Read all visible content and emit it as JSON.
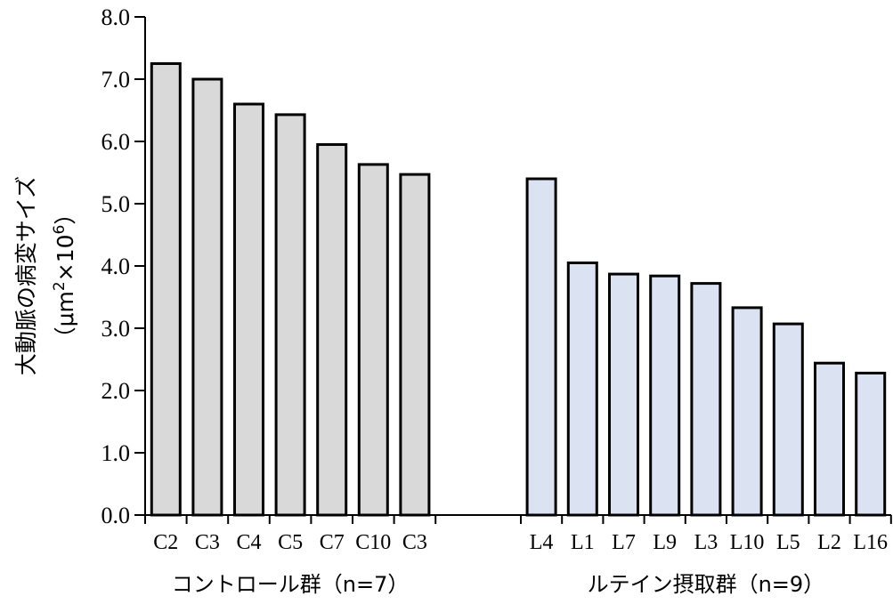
{
  "chart_data": {
    "type": "bar",
    "ylabel_line1": "大動脈の病変サイズ",
    "ylabel_line2_pre": "（μm",
    "ylabel_line2_sup1": "2",
    "ylabel_line2_mid": "×10",
    "ylabel_line2_sup2": "6",
    "ylabel_line2_post": "）",
    "ylim": [
      0,
      8
    ],
    "yticks": [
      "0.0",
      "1.0",
      "2.0",
      "3.0",
      "4.0",
      "5.0",
      "6.0",
      "7.0",
      "8.0"
    ],
    "grid": false,
    "groups": [
      {
        "name": "コントロール群（n=7）",
        "color": "#d9d9d9",
        "categories": [
          "C2",
          "C3",
          "C4",
          "C5",
          "C7",
          "C10",
          "C3"
        ],
        "values": [
          7.25,
          7.0,
          6.6,
          6.43,
          5.95,
          5.63,
          5.47
        ]
      },
      {
        "name": "ルテイン摂取群（n=9）",
        "color": "#dbe3f3",
        "categories": [
          "L4",
          "L1",
          "L7",
          "L9",
          "L3",
          "L10",
          "L5",
          "L2",
          "L16"
        ],
        "values": [
          5.4,
          4.05,
          3.87,
          3.84,
          3.72,
          3.33,
          3.07,
          2.44,
          2.28
        ]
      }
    ]
  }
}
